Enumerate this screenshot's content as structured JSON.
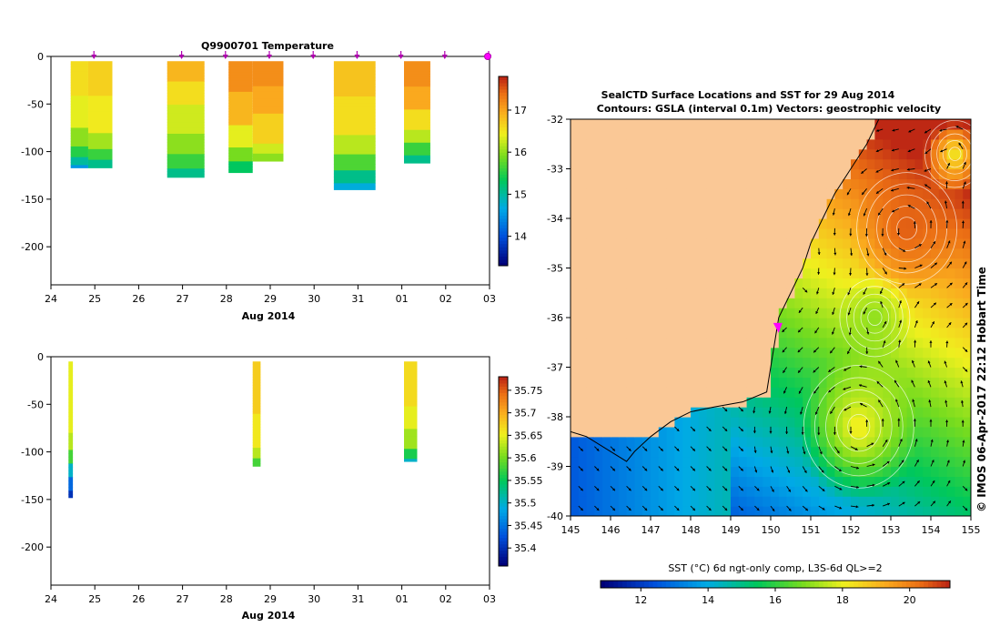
{
  "chart_data": [
    {
      "type": "heatmap",
      "id": "temperature-section",
      "title": "Q9900701  Temperature",
      "xlabel": "Aug 2014",
      "x_ticks": [
        "24",
        "25",
        "26",
        "27",
        "28",
        "29",
        "30",
        "31",
        "01",
        "02",
        "03"
      ],
      "y_ticks": [
        "0",
        "-50",
        "-100",
        "-150",
        "-200"
      ],
      "xlim": [
        24,
        34
      ],
      "ylim": [
        -240,
        0
      ],
      "colorbar": {
        "ticks": [
          "14",
          "15",
          "16",
          "17"
        ],
        "range": [
          13.3,
          17.8
        ]
      },
      "profile_markers_day": [
        25.0,
        27.0,
        28.0,
        29.0,
        30.0,
        31.0,
        32.0,
        33.0,
        34.0
      ],
      "current_marker_day": 34.0,
      "profiles": [
        {
          "x0": 24.45,
          "x1": 24.85,
          "depth": -117,
          "layers": [
            [
              0,
              16.6
            ],
            [
              -40,
              16.4
            ],
            [
              -75,
              16.0
            ],
            [
              -92,
              15.5
            ],
            [
              -105,
              15.0
            ],
            [
              -112,
              14.5
            ],
            [
              -125,
              13.9
            ],
            [
              -140,
              13.5
            ]
          ]
        },
        {
          "x0": 24.85,
          "x1": 25.4,
          "depth": -117,
          "layers": [
            [
              0,
              16.7
            ],
            [
              -40,
              16.5
            ],
            [
              -80,
              16.1
            ],
            [
              -95,
              15.6
            ],
            [
              -108,
              15.1
            ]
          ]
        },
        {
          "x0": 26.65,
          "x1": 27.5,
          "depth": -127,
          "layers": [
            [
              0,
              16.9
            ],
            [
              -25,
              16.6
            ],
            [
              -50,
              16.3
            ],
            [
              -80,
              16.0
            ],
            [
              -100,
              15.6
            ],
            [
              -115,
              15.1
            ]
          ]
        },
        {
          "x0": 28.05,
          "x1": 28.6,
          "depth": -122,
          "layers": [
            [
              0,
              17.2
            ],
            [
              -35,
              16.9
            ],
            [
              -70,
              16.4
            ],
            [
              -95,
              15.9
            ],
            [
              -110,
              15.3
            ]
          ]
        },
        {
          "x0": 28.6,
          "x1": 29.3,
          "depth": -110,
          "layers": [
            [
              0,
              17.2
            ],
            [
              -30,
              17.0
            ],
            [
              -60,
              16.7
            ],
            [
              -90,
              16.3
            ],
            [
              -102,
              16.0
            ]
          ]
        },
        {
          "x0": 30.45,
          "x1": 31.4,
          "depth": -140,
          "layers": [
            [
              0,
              16.8
            ],
            [
              -40,
              16.6
            ],
            [
              -80,
              16.2
            ],
            [
              -100,
              15.7
            ],
            [
              -118,
              15.1
            ],
            [
              -130,
              14.7
            ]
          ]
        },
        {
          "x0": 32.05,
          "x1": 32.65,
          "depth": -112,
          "layers": [
            [
              0,
              17.2
            ],
            [
              -30,
              17.0
            ],
            [
              -55,
              16.6
            ],
            [
              -75,
              16.2
            ],
            [
              -90,
              15.6
            ],
            [
              -102,
              15.1
            ]
          ]
        }
      ]
    },
    {
      "type": "heatmap",
      "id": "salinity-section",
      "title": "",
      "xlabel": "Aug 2014",
      "x_ticks": [
        "24",
        "25",
        "26",
        "27",
        "28",
        "29",
        "30",
        "31",
        "01",
        "02",
        "03"
      ],
      "y_ticks": [
        "0",
        "-50",
        "-100",
        "-150",
        "-200"
      ],
      "xlim": [
        24,
        34
      ],
      "ylim": [
        -240,
        0
      ],
      "colorbar": {
        "ticks": [
          "35.4",
          "35.45",
          "35.5",
          "35.55",
          "35.6",
          "35.65",
          "35.7",
          "35.75"
        ],
        "range": [
          35.36,
          35.78
        ]
      },
      "profiles": [
        {
          "x0": 24.4,
          "x1": 24.5,
          "depth": -148,
          "layers": [
            [
              0,
              35.65
            ],
            [
              -80,
              35.63
            ],
            [
              -95,
              35.58
            ],
            [
              -110,
              35.5
            ],
            [
              -125,
              35.44
            ],
            [
              -140,
              35.4
            ]
          ]
        },
        {
          "x0": 28.6,
          "x1": 28.78,
          "depth": -115,
          "layers": [
            [
              0,
              35.68
            ],
            [
              -60,
              35.66
            ],
            [
              -95,
              35.63
            ],
            [
              -105,
              35.58
            ]
          ]
        },
        {
          "x0": 32.05,
          "x1": 32.35,
          "depth": -110,
          "layers": [
            [
              0,
              35.67
            ],
            [
              -50,
              35.65
            ],
            [
              -75,
              35.62
            ],
            [
              -95,
              35.56
            ],
            [
              -105,
              35.5
            ]
          ]
        }
      ]
    },
    {
      "type": "heatmap",
      "id": "sst-map",
      "title": "SealCTD Surface Locations and SST for 29 Aug 2014",
      "subtitle": "Contours: GSLA (interval 0.1m) Vectors: geostrophic velocity",
      "x_ticks": [
        "145",
        "146",
        "147",
        "148",
        "149",
        "150",
        "151",
        "152",
        "153",
        "154",
        "155"
      ],
      "y_ticks": [
        "-32",
        "-33",
        "-34",
        "-35",
        "-36",
        "-37",
        "-38",
        "-39",
        "-40"
      ],
      "xlim": [
        145,
        155
      ],
      "ylim": [
        -40,
        -32
      ],
      "colorbar_label": "SST (°C) 6d ngt-only comp, L3S-6d QL>=2",
      "colorbar": {
        "ticks": [
          "12",
          "14",
          "16",
          "18",
          "20"
        ],
        "range": [
          10.8,
          21.2
        ]
      },
      "land_color": "#fac896",
      "eddies": [
        {
          "lon": 153.4,
          "lat": -34.2,
          "sst": 20.6,
          "radius_deg": 1.0
        },
        {
          "lon": 152.2,
          "lat": -38.2,
          "sst": 18.3,
          "radius_deg": 1.1
        },
        {
          "lon": 152.6,
          "lat": -36.0,
          "sst": 17.0,
          "radius_deg": 0.7
        },
        {
          "lon": 154.6,
          "lat": -32.7,
          "sst": 18.0,
          "radius_deg": 0.6
        }
      ],
      "marker": {
        "lon": 150.2,
        "lat": -36.2
      }
    }
  ],
  "credit": "© IMOS 06-Apr-2017 22:12 Hobart Time"
}
